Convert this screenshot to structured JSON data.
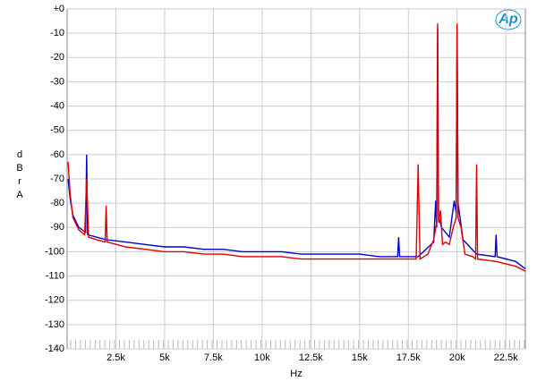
{
  "chart_data": {
    "type": "line",
    "xlabel": "Hz",
    "ylabel": "dBr A",
    "logo": "Ap",
    "xlim": [
      0,
      23500
    ],
    "ylim": [
      -140,
      0
    ],
    "xticks": [
      {
        "value": 2500,
        "label": "2.5k"
      },
      {
        "value": 5000,
        "label": "5k"
      },
      {
        "value": 7500,
        "label": "7.5k"
      },
      {
        "value": 10000,
        "label": "10k"
      },
      {
        "value": 12500,
        "label": "12.5k"
      },
      {
        "value": 15000,
        "label": "15k"
      },
      {
        "value": 17500,
        "label": "17.5k"
      },
      {
        "value": 20000,
        "label": "20k"
      },
      {
        "value": 22500,
        "label": "22.5k"
      }
    ],
    "yticks": [
      {
        "value": 0,
        "label": "+0"
      },
      -10,
      -20,
      -30,
      -40,
      -50,
      -60,
      -70,
      -80,
      -90,
      -100,
      -110,
      -120,
      -130,
      -140
    ],
    "grid": true,
    "series": [
      {
        "color": "#0000d0",
        "x": [
          50,
          150,
          300,
          600,
          950,
          1000,
          1050,
          1500,
          2000,
          3000,
          4000,
          5000,
          6000,
          7000,
          8000,
          9000,
          10000,
          11000,
          12000,
          13000,
          14000,
          15000,
          16000,
          16950,
          17000,
          17050,
          18000,
          18800,
          18900,
          18950,
          19000,
          19050,
          19200,
          19600,
          19850,
          19950,
          20000,
          20050,
          20300,
          21000,
          21950,
          22000,
          22050,
          23000,
          23500
        ],
        "values": [
          -70,
          -78,
          -85,
          -90,
          -92,
          -60,
          -93,
          -94,
          -95,
          -96,
          -97,
          -98,
          -98,
          -99,
          -99,
          -100,
          -100,
          -100,
          -101,
          -101,
          -101,
          -101,
          -102,
          -102,
          -94,
          -102,
          -102,
          -96,
          -79,
          -90,
          -8,
          -85,
          -90,
          -94,
          -79,
          -84,
          -7,
          -80,
          -95,
          -101,
          -102,
          -93,
          -102,
          -104,
          -107
        ]
      },
      {
        "color": "#e00000",
        "x": [
          50,
          150,
          300,
          600,
          900,
          1000,
          1100,
          1500,
          1950,
          2000,
          2050,
          3000,
          4000,
          5000,
          6000,
          7000,
          8000,
          9000,
          10000,
          11000,
          12000,
          13000,
          14000,
          15000,
          16000,
          17000,
          17900,
          18000,
          18100,
          18500,
          18800,
          18950,
          19000,
          19050,
          19150,
          19250,
          19400,
          19600,
          19800,
          19950,
          20000,
          20050,
          20200,
          20400,
          20800,
          20950,
          21000,
          21050,
          22000,
          23000,
          23500
        ],
        "values": [
          -63,
          -76,
          -86,
          -91,
          -93,
          -70,
          -94,
          -95,
          -96,
          -81,
          -96,
          -98,
          -99,
          -100,
          -100,
          -101,
          -101,
          -102,
          -102,
          -102,
          -103,
          -103,
          -103,
          -103,
          -103,
          -103,
          -103,
          -64,
          -103,
          -101,
          -95,
          -88,
          -6,
          -88,
          -83,
          -97,
          -96,
          -97,
          -90,
          -86,
          -6,
          -86,
          -90,
          -101,
          -102,
          -103,
          -64,
          -103,
          -104,
          -106,
          -108
        ]
      }
    ]
  }
}
